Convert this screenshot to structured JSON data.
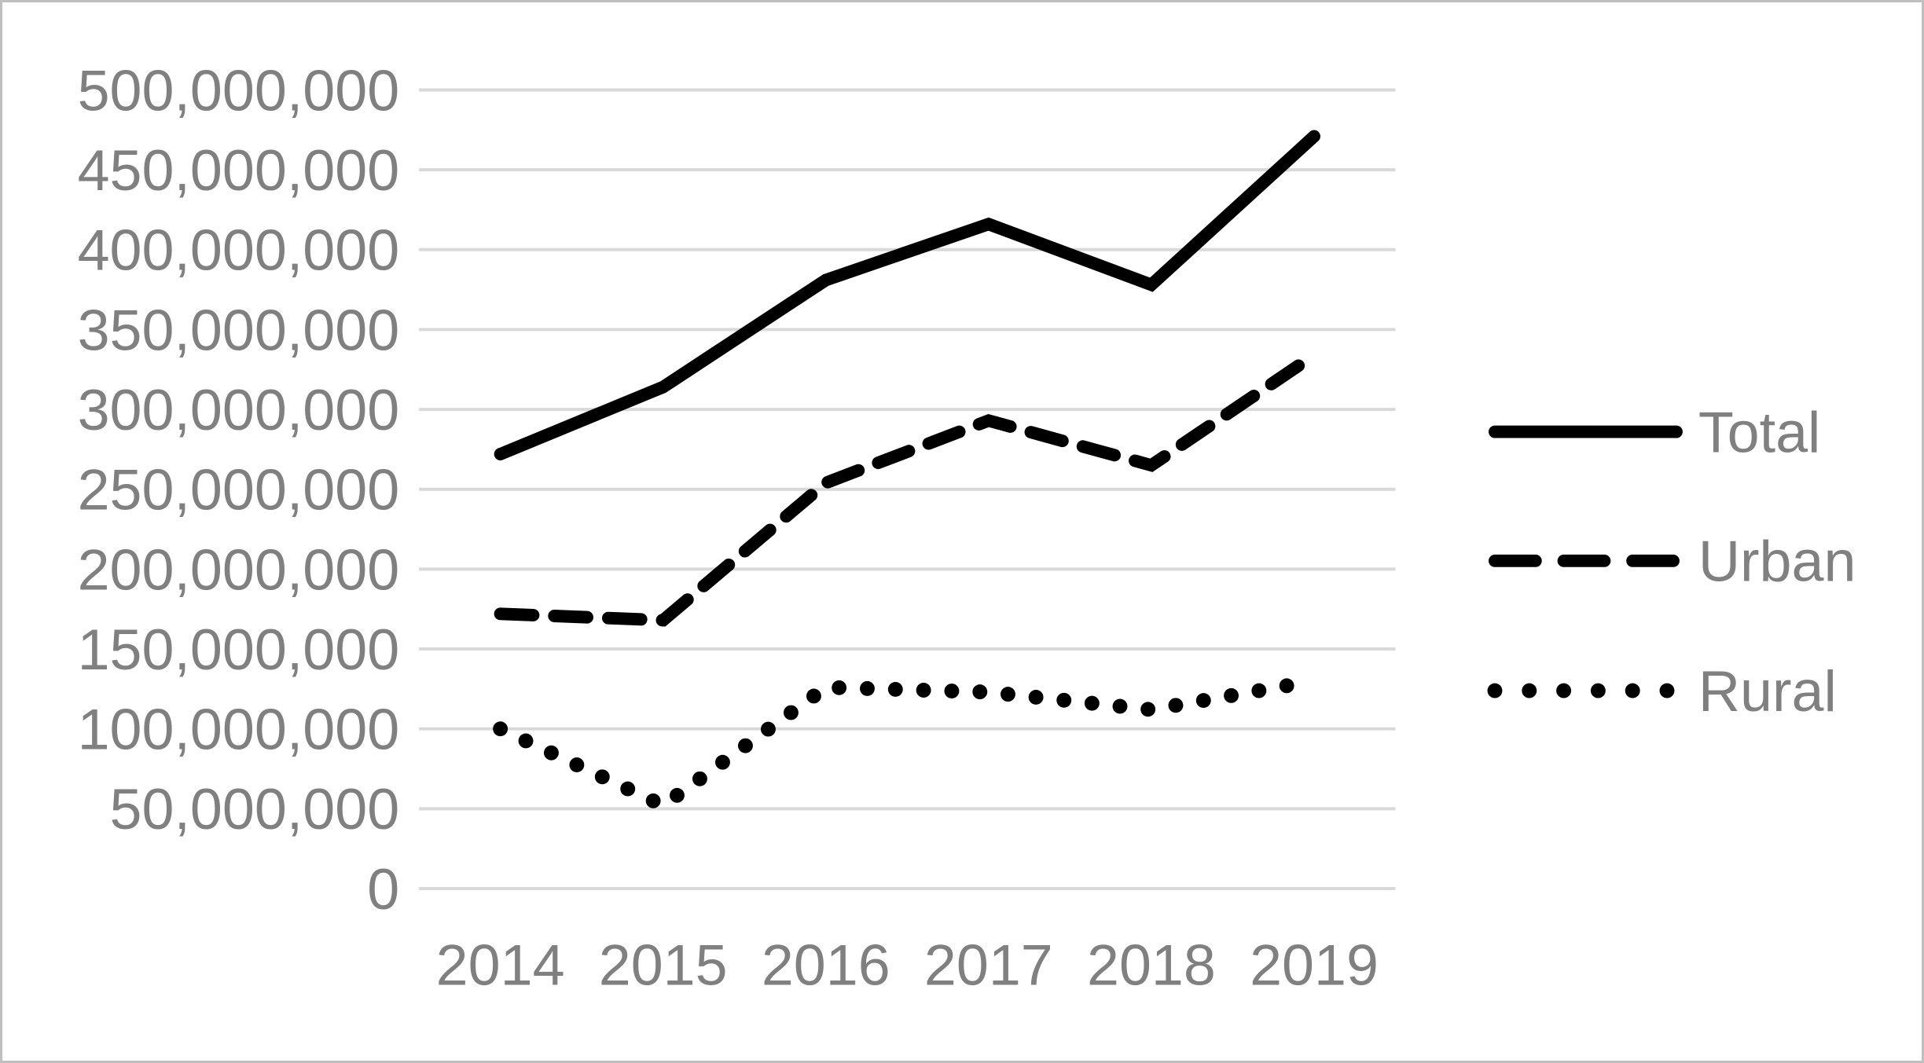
{
  "figure": {
    "kind": "excel-style line chart",
    "background_color": "#ffffff",
    "frame_border_color": "#bfbfbf",
    "gridline_color": "#d9d9d9",
    "axis_text_color": "#808080",
    "series_line_color": "#000000"
  },
  "chart_data": {
    "type": "line",
    "title": "",
    "xlabel": "",
    "ylabel": "",
    "grid": true,
    "legend_position": "right",
    "categories": [
      "2014",
      "2015",
      "2016",
      "2017",
      "2018",
      "2019"
    ],
    "series": [
      {
        "name": "Total",
        "dash": "solid",
        "values": [
          272000000,
          314000000,
          381000000,
          416000000,
          378000000,
          471000000
        ]
      },
      {
        "name": "Urban",
        "dash": "dashed",
        "values": [
          172000000,
          168000000,
          254000000,
          293000000,
          265000000,
          334000000
        ]
      },
      {
        "name": "Rural",
        "dash": "dotted",
        "values": [
          100000000,
          52000000,
          126000000,
          123000000,
          112000000,
          130000000
        ]
      }
    ],
    "ylim": [
      0,
      500000000
    ],
    "ytick_step": 50000000,
    "ytick_labels": [
      "0",
      "50,000,000",
      "100,000,000",
      "150,000,000",
      "200,000,000",
      "250,000,000",
      "300,000,000",
      "350,000,000",
      "400,000,000",
      "450,000,000",
      "500,000,000"
    ]
  }
}
